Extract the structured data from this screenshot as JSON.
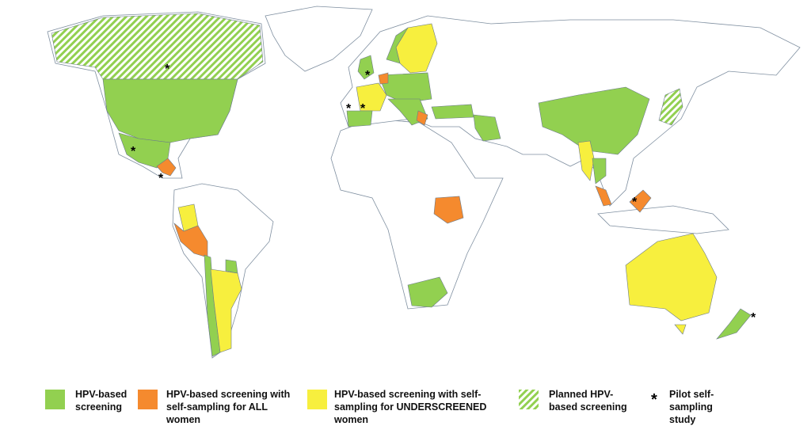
{
  "legend": [
    {
      "label": "HPV-based screening",
      "color": "#92d050"
    },
    {
      "label": "HPV-based screening with self-sampling for ALL women",
      "color": "#f58a2e"
    },
    {
      "label": "HPV-based screening with self-sampling for UNDERSCREENED women",
      "color": "#f7ef3e"
    },
    {
      "label": "Planned HPV-based screening",
      "color": "#92d050"
    },
    {
      "label": "Pilot self-sampling study",
      "symbol": "*"
    }
  ]
}
